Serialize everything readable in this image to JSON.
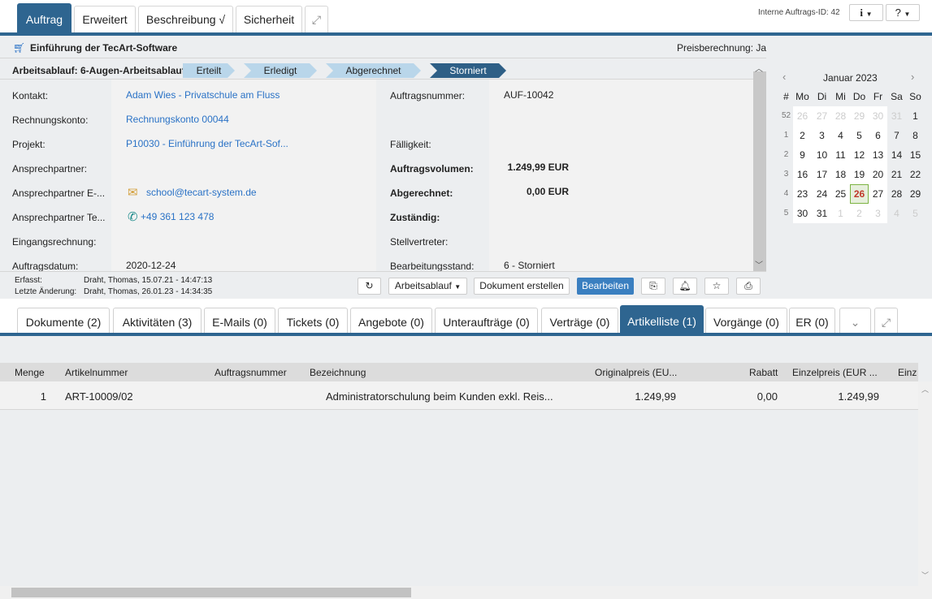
{
  "top_tabs": [
    "Auftrag",
    "Erweitert",
    "Beschreibung √",
    "Sicherheit"
  ],
  "header": {
    "internal_id": "Interne Auftrags-ID: 42",
    "info_btn": "i",
    "help_btn": "?"
  },
  "title": "Einführung der TecArt-Software",
  "price_calc": "Preisberechnung: Ja",
  "workflow": {
    "label": "Arbeitsablauf: 6-Augen-Arbeitsablauf",
    "steps": [
      "Erteilt",
      "Erledigt",
      "Abgerechnet",
      "Storniert"
    ],
    "active": "Storniert"
  },
  "left_fields": [
    {
      "label": "Kontakt:",
      "value": "Adam Wies - Privatschule am Fluss"
    },
    {
      "label": "Rechnungskonto:",
      "value": "Rechnungskonto 00044"
    },
    {
      "label": "Projekt:",
      "value": "P10030 - Einführung der TecArt-Sof..."
    },
    {
      "label": "Ansprechpartner:",
      "value": ""
    },
    {
      "label": "Ansprechpartner E-...",
      "value": "school@tecart-system.de"
    },
    {
      "label": "Ansprechpartner Te...",
      "value": "+49 361 123 478"
    },
    {
      "label": "Eingangsrechnung:",
      "value": ""
    },
    {
      "label": "Auftragsdatum:",
      "value": "2020-12-24"
    }
  ],
  "right_fields": [
    {
      "label": "Auftragsnummer:",
      "value": "AUF-10042"
    },
    {
      "label": "",
      "value": ""
    },
    {
      "label": "Fälligkeit:",
      "value": ""
    },
    {
      "label": "Auftragsvolumen:",
      "value": "1.249,99 EUR"
    },
    {
      "label": "Abgerechnet:",
      "value": "0,00 EUR"
    },
    {
      "label": "Zuständig:",
      "value": ""
    },
    {
      "label": "Stellvertreter:",
      "value": ""
    },
    {
      "label": "Bearbeitungsstand:",
      "value": "6 - Storniert"
    }
  ],
  "calendar": {
    "title": "Januar 2023",
    "headers": [
      "#",
      "Mo",
      "Di",
      "Mi",
      "Do",
      "Fr",
      "Sa",
      "So"
    ],
    "weeks": [
      [
        "52",
        "26",
        "27",
        "28",
        "29",
        "30",
        "31",
        "1"
      ],
      [
        "1",
        "2",
        "3",
        "4",
        "5",
        "6",
        "7",
        "8"
      ],
      [
        "2",
        "9",
        "10",
        "11",
        "12",
        "13",
        "14",
        "15"
      ],
      [
        "3",
        "16",
        "17",
        "18",
        "19",
        "20",
        "21",
        "22"
      ],
      [
        "4",
        "23",
        "24",
        "25",
        "26",
        "27",
        "28",
        "29"
      ],
      [
        "5",
        "30",
        "31",
        "1",
        "2",
        "3",
        "4",
        "5"
      ]
    ],
    "today": "26",
    "today_color": "#c0392b"
  },
  "footer": {
    "created_label": "Erfasst:",
    "created": "Draht, Thomas, 15.07.21 - 14:47:13",
    "changed_label": "Letzte Änderung:",
    "changed": "Draht, Thomas, 26.01.23 - 14:34:35"
  },
  "actions": {
    "workflow": "Arbeitsablauf",
    "create_doc": "Dokument erstellen",
    "edit": "Bearbeiten"
  },
  "bottom_tabs": [
    "Dokumente (2)",
    "Aktivitäten (3)",
    "E-Mails (0)",
    "Tickets (0)",
    "Angebote (0)",
    "Unteraufträge (0)",
    "Verträge (0)",
    "Artikelliste (1)",
    "Vorgänge (0)",
    "ER (0)"
  ],
  "table": {
    "columns": [
      "Menge",
      "Artikelnummer",
      "Auftragsnummer",
      "Bezeichnung",
      "Originalpreis (EU...",
      "Rabatt",
      "Einzelpreis (EUR ...",
      "Einz"
    ],
    "rows": [
      [
        "1",
        "ART-10009/02",
        "",
        "Administratorschulung beim Kunden exkl. Reis...",
        "1.249,99",
        "0,00",
        "1.249,99",
        ""
      ]
    ]
  },
  "colors": {
    "accent": "#2e6590",
    "link": "#2a72c6",
    "step_inactive": "#b9d6ea"
  }
}
